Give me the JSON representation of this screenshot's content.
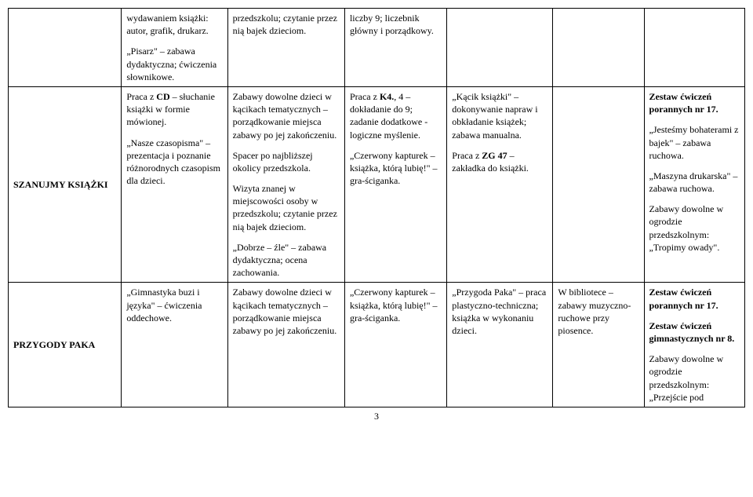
{
  "row0": {
    "c1a": "wydawaniem książki: autor, grafik, drukarz.",
    "c1b": "„Pisarz\" – zabawa dydaktyczna; ćwiczenia słownikowe.",
    "c2": "przedszkolu; czytanie przez nią bajek dzieciom.",
    "c3": "liczby 9; liczebnik główny i porządkowy."
  },
  "row1": {
    "label": "SZANUJMY KSIĄŻKI",
    "c1a": "Praca z CD – słuchanie książki w formie mówionej.",
    "c1b": "„Nasze czasopisma\" – prezentacja i poznanie różnorodnych czasopism dla dzieci.",
    "c2a": "Zabawy dowolne dzieci w kącikach tematycznych – porządkowanie miejsca zabawy po jej zakończeniu.",
    "c2b": "Spacer po najbliższej okolicy przedszkola.",
    "c2c": "Wizyta znanej w miejscowości osoby w przedszkolu; czytanie przez nią bajek dzieciom.",
    "c2d": "„Dobrze – źle\" – zabawa dydaktyczna; ocena zachowania.",
    "c3a": "Praca z K4., 4 – dokładanie do 9; zadanie dodatkowe - logiczne myślenie.",
    "c3b": "„Czerwony kapturek – książka, którą lubię!\" – gra-ściganka.",
    "c4a": "„Kącik książki\" – dokonywanie napraw i obkładanie książek; zabawa manualna.",
    "c4b": "Praca z ZG 47 – zakładka do książki.",
    "c6a": "Zestaw ćwiczeń porannych nr 17.",
    "c6b": "„Jesteśmy bohaterami z bajek\" – zabawa ruchowa.",
    "c6c": "„Maszyna drukarska\" – zabawa ruchowa.",
    "c6d": "Zabawy dowolne w ogrodzie przedszkolnym: „Tropimy owady\"."
  },
  "row2": {
    "label": "PRZYGODY PAKA",
    "c1": "„Gimnastyka buzi i języka\" – ćwiczenia oddechowe.",
    "c2": "Zabawy dowolne dzieci w kącikach tematycznych – porządkowanie miejsca zabawy po jej zakończeniu.",
    "c3": "„Czerwony kapturek – książka, którą lubię!\" – gra-ściganka.",
    "c4": "„Przygoda Paka\" – praca plastyczno-techniczna; książka w wykonaniu dzieci.",
    "c5": "W bibliotece – zabawy muzyczno-ruchowe przy piosence.",
    "c6a": "Zestaw ćwiczeń porannych nr 17.",
    "c6b": "Zestaw ćwiczeń gimnastycznych nr 8.",
    "c6c": "Zabawy dowolne w ogrodzie przedszkolnym: „Przejście pod"
  },
  "pagenum": "3"
}
